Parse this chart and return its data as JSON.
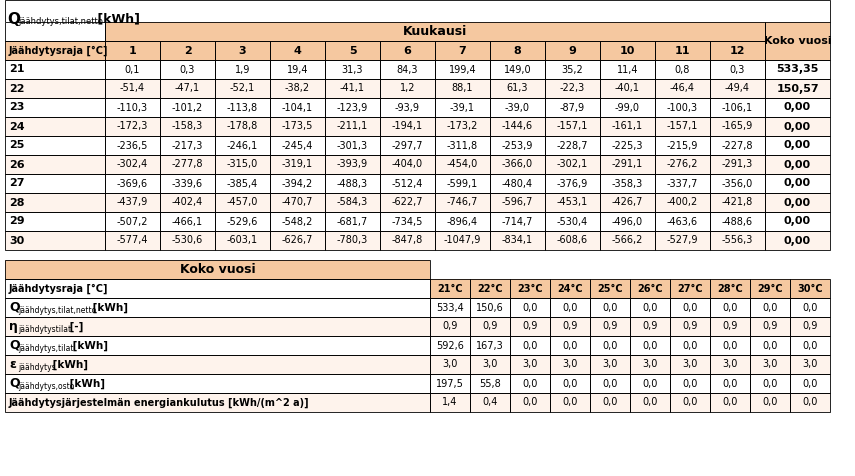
{
  "title_main": "Q",
  "title_sub": "jäähdytys,tilat,netto",
  "title_unit": " [kWh]",
  "kuukausi_header": "Kuukausi",
  "koko_vuosi": "Koko vuosi",
  "col_header": "Jäähdytysraja [°C]",
  "months": [
    "1",
    "2",
    "3",
    "4",
    "5",
    "6",
    "7",
    "8",
    "9",
    "10",
    "11",
    "12"
  ],
  "rows": [
    {
      "raja": "21",
      "values": [
        "0,1",
        "0,3",
        "1,9",
        "19,4",
        "31,3",
        "84,3",
        "199,4",
        "149,0",
        "35,2",
        "11,4",
        "0,8",
        "0,3"
      ],
      "total": "533,35"
    },
    {
      "raja": "22",
      "values": [
        "-51,4",
        "-47,1",
        "-52,1",
        "-38,2",
        "-41,1",
        "1,2",
        "88,1",
        "61,3",
        "-22,3",
        "-40,1",
        "-46,4",
        "-49,4"
      ],
      "total": "150,57"
    },
    {
      "raja": "23",
      "values": [
        "-110,3",
        "-101,2",
        "-113,8",
        "-104,1",
        "-123,9",
        "-93,9",
        "-39,1",
        "-39,0",
        "-87,9",
        "-99,0",
        "-100,3",
        "-106,1"
      ],
      "total": "0,00"
    },
    {
      "raja": "24",
      "values": [
        "-172,3",
        "-158,3",
        "-178,8",
        "-173,5",
        "-211,1",
        "-194,1",
        "-173,2",
        "-144,6",
        "-157,1",
        "-161,1",
        "-157,1",
        "-165,9"
      ],
      "total": "0,00"
    },
    {
      "raja": "25",
      "values": [
        "-236,5",
        "-217,3",
        "-246,1",
        "-245,4",
        "-301,3",
        "-297,7",
        "-311,8",
        "-253,9",
        "-228,7",
        "-225,3",
        "-215,9",
        "-227,8"
      ],
      "total": "0,00"
    },
    {
      "raja": "26",
      "values": [
        "-302,4",
        "-277,8",
        "-315,0",
        "-319,1",
        "-393,9",
        "-404,0",
        "-454,0",
        "-366,0",
        "-302,1",
        "-291,1",
        "-276,2",
        "-291,3"
      ],
      "total": "0,00"
    },
    {
      "raja": "27",
      "values": [
        "-369,6",
        "-339,6",
        "-385,4",
        "-394,2",
        "-488,3",
        "-512,4",
        "-599,1",
        "-480,4",
        "-376,9",
        "-358,3",
        "-337,7",
        "-356,0"
      ],
      "total": "0,00"
    },
    {
      "raja": "28",
      "values": [
        "-437,9",
        "-402,4",
        "-457,0",
        "-470,7",
        "-584,3",
        "-622,7",
        "-746,7",
        "-596,7",
        "-453,1",
        "-426,7",
        "-400,2",
        "-421,8"
      ],
      "total": "0,00"
    },
    {
      "raja": "29",
      "values": [
        "-507,2",
        "-466,1",
        "-529,6",
        "-548,2",
        "-681,7",
        "-734,5",
        "-896,4",
        "-714,7",
        "-530,4",
        "-496,0",
        "-463,6",
        "-488,6"
      ],
      "total": "0,00"
    },
    {
      "raja": "30",
      "values": [
        "-577,4",
        "-530,6",
        "-603,1",
        "-626,7",
        "-780,3",
        "-847,8",
        "-1047,9",
        "-834,1",
        "-608,6",
        "-566,2",
        "-527,9",
        "-556,3"
      ],
      "total": "0,00"
    }
  ],
  "bottom_temp_cols": [
    "21°C",
    "22°C",
    "23°C",
    "24°C",
    "25°C",
    "26°C",
    "27°C",
    "28°C",
    "29°C",
    "30°C"
  ],
  "bottom_rows": [
    {
      "label": "Q",
      "sub": "jäähdytys,tilat,netto",
      "unit": " [kWh]",
      "values": [
        "533,4",
        "150,6",
        "0,0",
        "0,0",
        "0,0",
        "0,0",
        "0,0",
        "0,0",
        "0,0",
        "0,0"
      ]
    },
    {
      "label": "η",
      "sub": "jäähdytystilat",
      "unit": " [-]",
      "values": [
        "0,9",
        "0,9",
        "0,9",
        "0,9",
        "0,9",
        "0,9",
        "0,9",
        "0,9",
        "0,9",
        "0,9"
      ]
    },
    {
      "label": "Q",
      "sub": "jäähdytys,tilat",
      "unit": " [kWh]",
      "values": [
        "592,6",
        "167,3",
        "0,0",
        "0,0",
        "0,0",
        "0,0",
        "0,0",
        "0,0",
        "0,0",
        "0,0"
      ]
    },
    {
      "label": "ε",
      "sub": "jäähdytys",
      "unit": " [kWh]",
      "values": [
        "3,0",
        "3,0",
        "3,0",
        "3,0",
        "3,0",
        "3,0",
        "3,0",
        "3,0",
        "3,0",
        "3,0"
      ]
    },
    {
      "label": "Q",
      "sub": "jäähdytys,osto",
      "unit": " [kWh]",
      "values": [
        "197,5",
        "55,8",
        "0,0",
        "0,0",
        "0,0",
        "0,0",
        "0,0",
        "0,0",
        "0,0",
        "0,0"
      ]
    },
    {
      "label": "Jäähdytysjärjestelmän energiankulutus [kWh/(m^2 a)]",
      "sub": "",
      "unit": "",
      "values": [
        "1,4",
        "0,4",
        "0,0",
        "0,0",
        "0,0",
        "0,0",
        "0,0",
        "0,0",
        "0,0",
        "0,0"
      ]
    }
  ],
  "bg_orange": "#F5C8A0",
  "bg_white": "#FFFFFF",
  "bg_light": "#FEF3EC",
  "border_color": "#000000",
  "fig_bg": "#FFFFFF"
}
